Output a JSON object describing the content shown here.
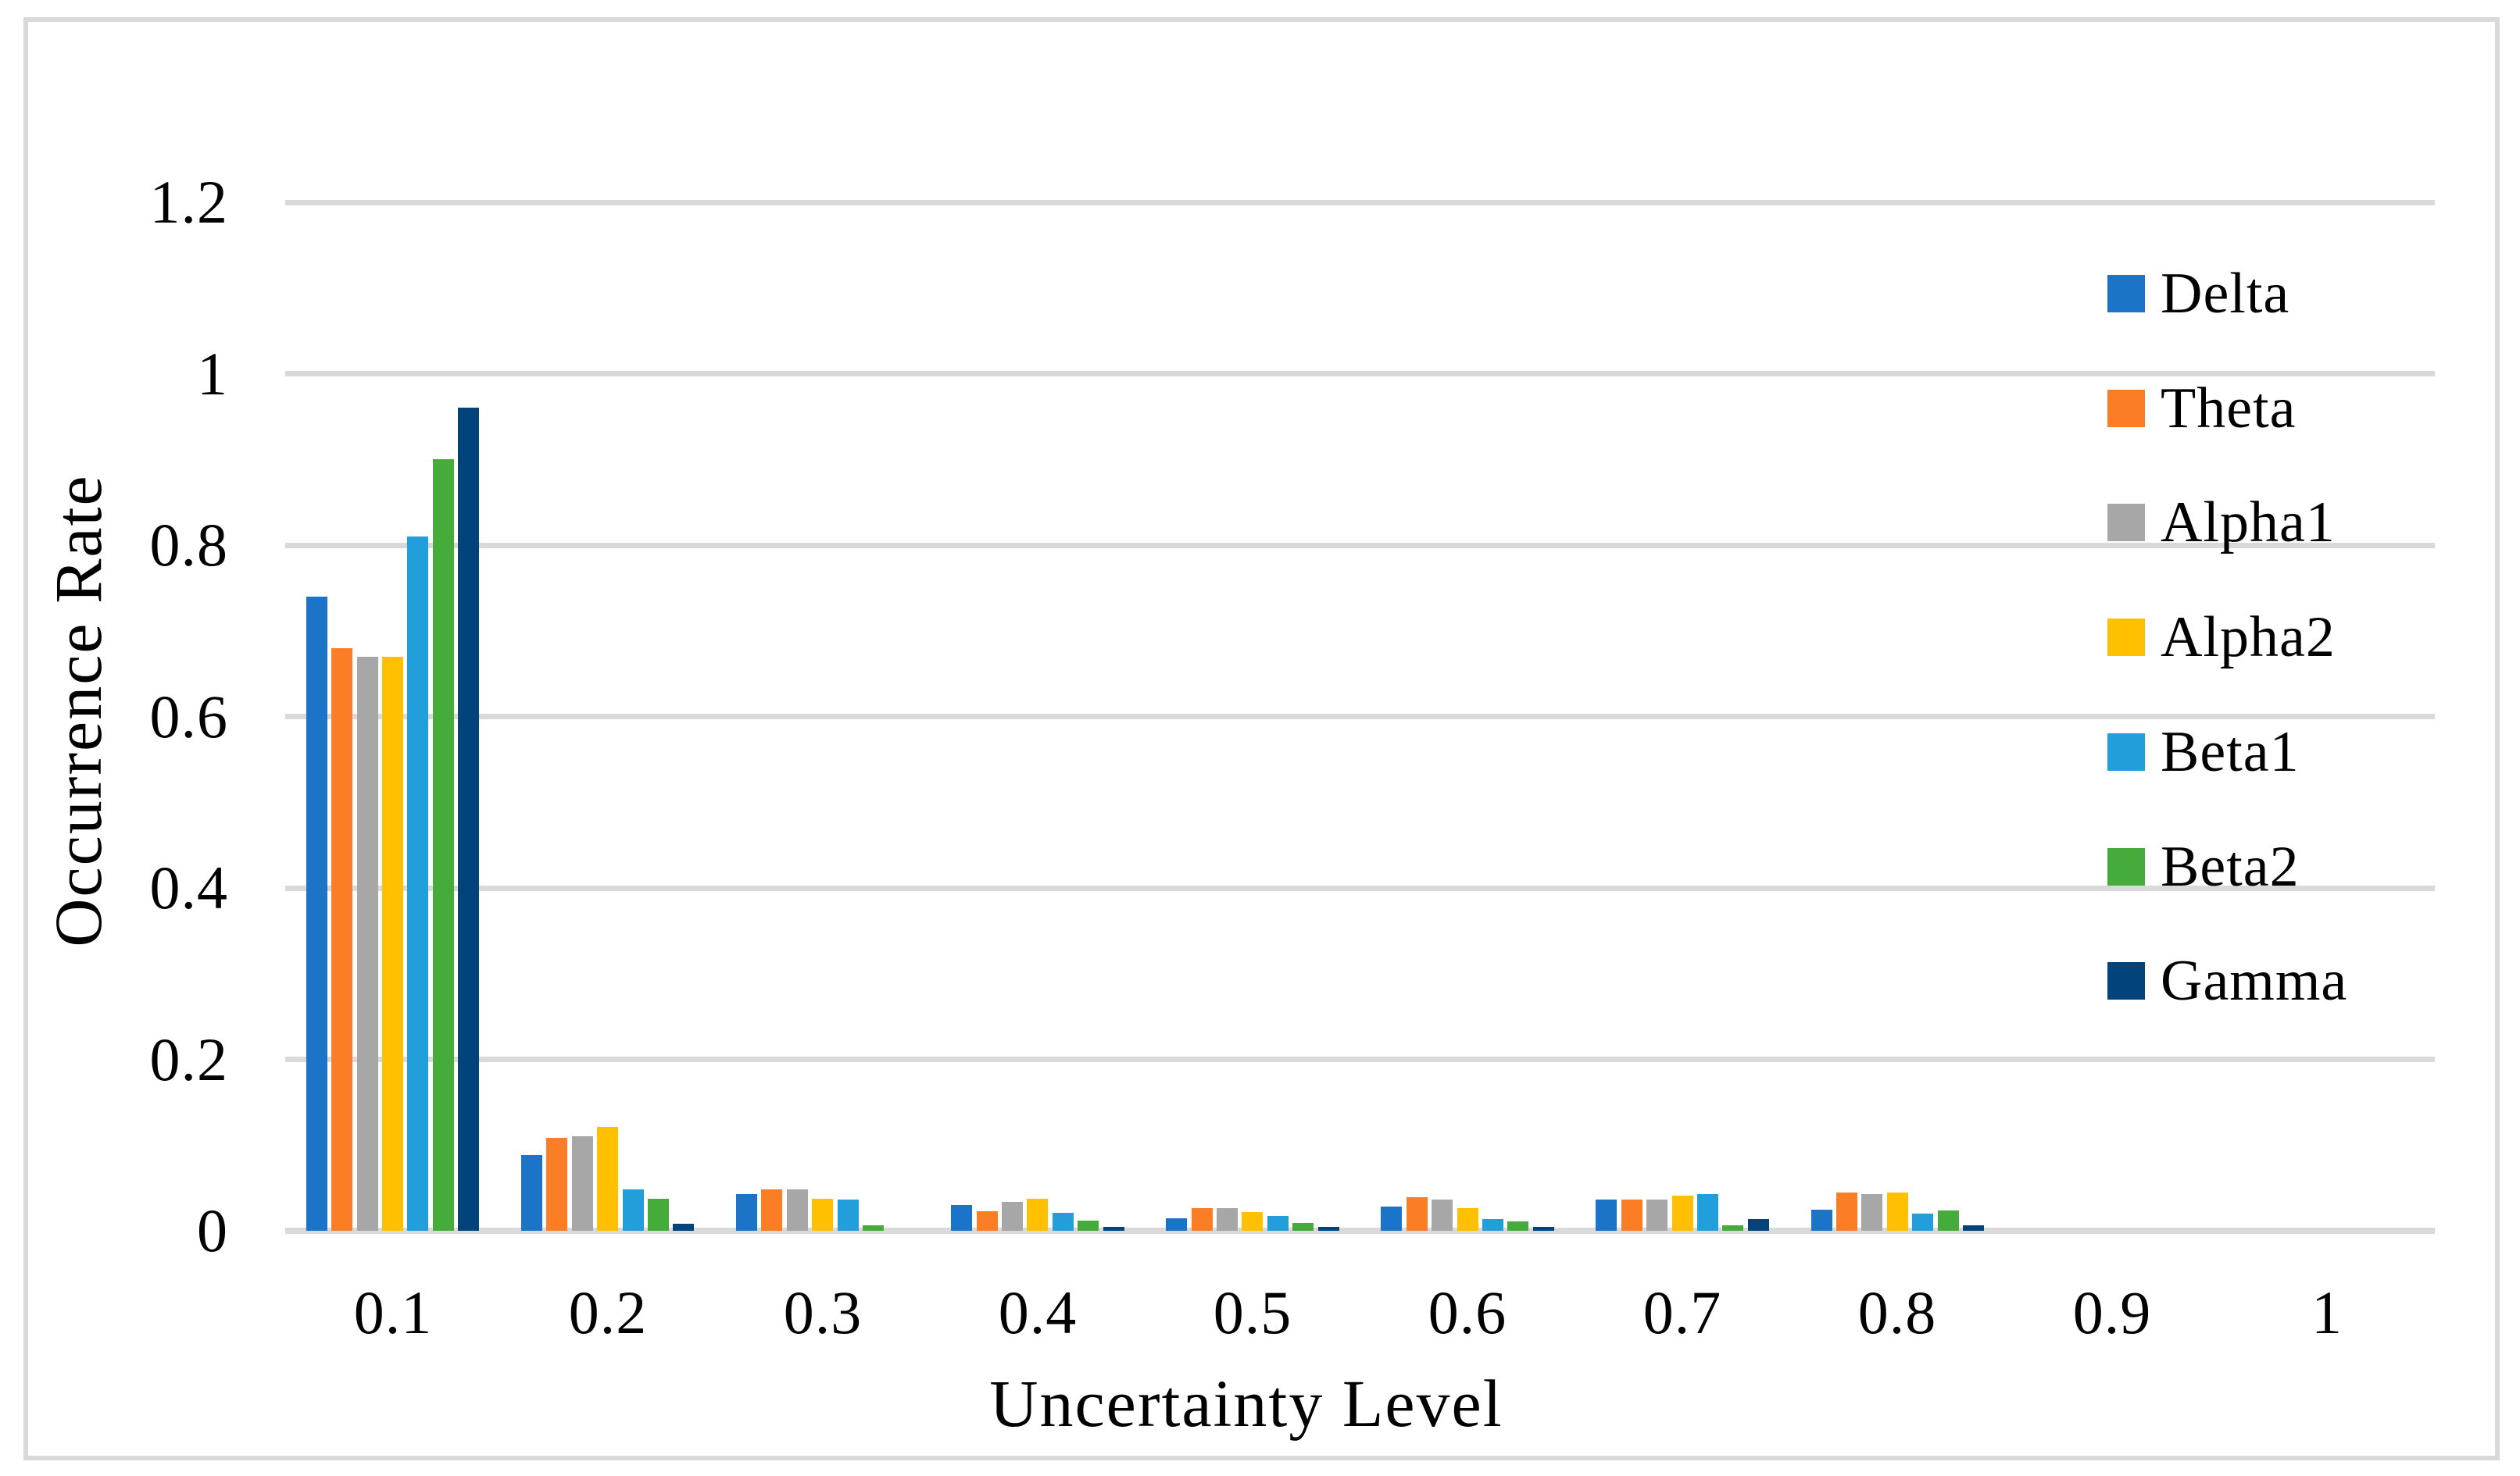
{
  "figure": {
    "background_color": "#FFFFFF",
    "border_color": "#D9D9D9",
    "gridline_color": "#D9D9D9",
    "text_color": "#000000"
  },
  "chart_data": {
    "type": "bar",
    "title": "",
    "xlabel": "Uncertainty Level",
    "ylabel": "Occurrence Rate",
    "categories": [
      "0.1",
      "0.2",
      "0.3",
      "0.4",
      "0.5",
      "0.6",
      "0.7",
      "0.8",
      "0.9",
      "1"
    ],
    "series": [
      {
        "name": "Delta",
        "color": "#1B74C8",
        "values": [
          0.74,
          0.088,
          0.043,
          0.03,
          0.015,
          0.028,
          0.036,
          0.025,
          0,
          0
        ]
      },
      {
        "name": "Theta",
        "color": "#FB7D26",
        "values": [
          0.68,
          0.108,
          0.048,
          0.023,
          0.026,
          0.039,
          0.036,
          0.045,
          0,
          0
        ]
      },
      {
        "name": "Alpha1",
        "color": "#A7A7A7",
        "values": [
          0.67,
          0.11,
          0.048,
          0.034,
          0.026,
          0.036,
          0.036,
          0.043,
          0,
          0
        ]
      },
      {
        "name": "Alpha2",
        "color": "#FFC002",
        "values": [
          0.67,
          0.121,
          0.037,
          0.037,
          0.022,
          0.026,
          0.041,
          0.045,
          0,
          0
        ]
      },
      {
        "name": "Beta1",
        "color": "#229FDB",
        "values": [
          0.81,
          0.048,
          0.036,
          0.021,
          0.017,
          0.014,
          0.043,
          0.02,
          0,
          0
        ]
      },
      {
        "name": "Beta2",
        "color": "#45AC3C",
        "values": [
          0.9,
          0.037,
          0.006,
          0.012,
          0.009,
          0.011,
          0.006,
          0.024,
          0,
          0
        ]
      },
      {
        "name": "Gamma",
        "color": "#02437C",
        "values": [
          0.96,
          0.008,
          0,
          0.005,
          0.005,
          0.005,
          0.014,
          0.006,
          0,
          0
        ]
      }
    ],
    "y_ticks": [
      {
        "label": "1.2",
        "value": 1.2
      },
      {
        "label": "1",
        "value": 1.0
      },
      {
        "label": "0.8",
        "value": 0.8
      },
      {
        "label": "0.6",
        "value": 0.6
      },
      {
        "label": "0.4",
        "value": 0.4
      },
      {
        "label": "0.2",
        "value": 0.2
      },
      {
        "label": "0",
        "value": 0
      }
    ],
    "ylim": [
      0,
      1.2
    ],
    "grid": true,
    "legend_position": "right"
  }
}
